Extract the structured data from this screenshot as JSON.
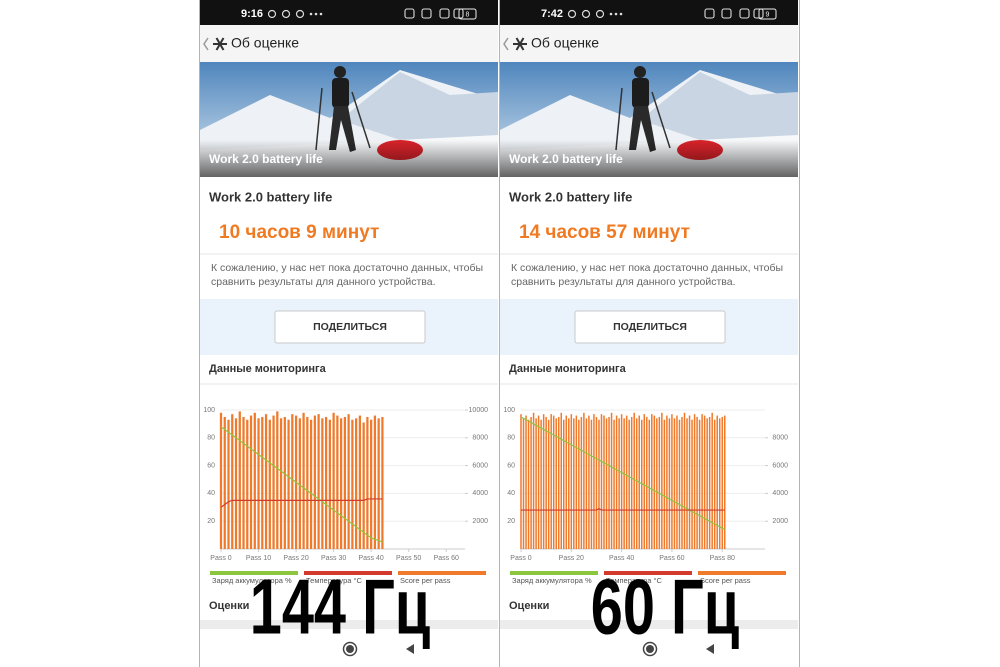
{
  "panels": [
    {
      "time": "9:16",
      "battery": "8",
      "header": "Об оценке",
      "banner_caption": "Work 2.0 battery life",
      "test_name": "Work 2.0 battery life",
      "result": "10 часов 9 минут",
      "note_lines": [
        "К сожалению, у нас нет пока достаточно данных, чтобы",
        "сравнить результаты для данного устройства."
      ],
      "share_button": "ПОДЕЛИТЬСЯ",
      "monitoring_title": "Данные мониторинга",
      "ratings_title": "Оценки",
      "overlay_label": "144 Гц"
    },
    {
      "time": "7:42",
      "battery": "9",
      "header": "Об оценке",
      "banner_caption": "Work 2.0 battery life",
      "test_name": "Work 2.0 battery life",
      "result": "14 часов 57 минут",
      "note_lines": [
        "К сожалению, у нас нет пока достаточно данных, чтобы",
        "сравнить результаты для данного устройства."
      ],
      "share_button": "ПОДЕЛИТЬСЯ",
      "monitoring_title": "Данные мониторинга",
      "ratings_title": "Оценки",
      "overlay_label": "60 Гц"
    }
  ],
  "chart_data": [
    {
      "type": "combo",
      "xlim": [
        0,
        65
      ],
      "ylim": [
        0,
        100
      ],
      "y2lim": [
        0,
        10000
      ],
      "xticks": [
        {
          "value": 0,
          "label": "Pass 0"
        },
        {
          "value": 10,
          "label": "Pass 10"
        },
        {
          "value": 20,
          "label": "Pass 20"
        },
        {
          "value": 30,
          "label": "Pass 30"
        },
        {
          "value": 40,
          "label": "Pass 40"
        },
        {
          "value": 50,
          "label": "Pass 50"
        },
        {
          "value": 60,
          "label": "Pass 60"
        }
      ],
      "yticks": [
        20,
        40,
        60,
        80,
        100
      ],
      "y2ticks": [
        2000,
        4000,
        6000,
        8000,
        10000
      ],
      "grid": true,
      "x": [
        0,
        1,
        2,
        3,
        4,
        5,
        6,
        7,
        8,
        9,
        10,
        11,
        12,
        13,
        14,
        15,
        16,
        17,
        18,
        19,
        20,
        21,
        22,
        23,
        24,
        25,
        26,
        27,
        28,
        29,
        30,
        31,
        32,
        33,
        34,
        35,
        36,
        37,
        38,
        39,
        40,
        41,
        42,
        43
      ],
      "series": [
        {
          "name": "Score per pass",
          "type": "bar",
          "axis": "y2",
          "color": "#ef7a2c",
          "values": [
            9800,
            9500,
            9300,
            9700,
            9400,
            9900,
            9500,
            9300,
            9600,
            9800,
            9400,
            9500,
            9700,
            9300,
            9600,
            9900,
            9400,
            9500,
            9300,
            9700,
            9600,
            9400,
            9800,
            9500,
            9300,
            9600,
            9700,
            9400,
            9500,
            9300,
            9800,
            9600,
            9400,
            9500,
            9700,
            9300,
            9400,
            9600,
            9100,
            9500,
            9300,
            9600,
            9400,
            9500
          ]
        },
        {
          "name": "Заряд аккумулятора %",
          "type": "line",
          "color": "#8cc63f",
          "values": [
            88,
            86,
            84,
            82,
            80,
            78,
            76,
            74,
            72,
            70,
            68,
            66,
            64,
            62,
            60,
            58,
            56,
            54,
            52,
            50,
            48,
            46,
            44,
            42,
            40,
            38,
            36,
            34,
            32,
            30,
            28,
            26,
            24,
            22,
            20,
            18,
            16,
            14,
            12,
            10,
            8,
            7,
            6,
            5
          ]
        },
        {
          "name": "Температура °C",
          "type": "line",
          "color": "#d23a2e",
          "values": [
            30,
            32,
            34,
            35,
            35,
            35,
            35,
            35,
            35,
            35,
            35,
            35,
            35,
            35,
            35,
            35,
            35,
            35,
            35,
            35,
            35,
            35,
            35,
            35,
            35,
            35,
            35,
            35,
            35,
            35,
            35,
            35,
            35,
            35,
            35,
            35,
            35,
            35,
            35,
            36,
            36,
            36,
            36,
            36
          ]
        }
      ]
    },
    {
      "type": "combo",
      "xlim": [
        0,
        97
      ],
      "ylim": [
        0,
        100
      ],
      "y2lim": [
        0,
        10000
      ],
      "xticks": [
        {
          "value": 0,
          "label": "Pass 0"
        },
        {
          "value": 20,
          "label": "Pass 20"
        },
        {
          "value": 40,
          "label": "Pass 40"
        },
        {
          "value": 60,
          "label": "Pass 60"
        },
        {
          "value": 80,
          "label": "Pass 80"
        }
      ],
      "yticks": [
        20,
        40,
        60,
        80,
        100
      ],
      "y2ticks": [
        2000,
        4000,
        6000,
        8000
      ],
      "grid": true,
      "x": [
        0,
        1,
        2,
        3,
        4,
        5,
        6,
        7,
        8,
        9,
        10,
        11,
        12,
        13,
        14,
        15,
        16,
        17,
        18,
        19,
        20,
        21,
        22,
        23,
        24,
        25,
        26,
        27,
        28,
        29,
        30,
        31,
        32,
        33,
        34,
        35,
        36,
        37,
        38,
        39,
        40,
        41,
        42,
        43,
        44,
        45,
        46,
        47,
        48,
        49,
        50,
        51,
        52,
        53,
        54,
        55,
        56,
        57,
        58,
        59,
        60,
        61,
        62,
        63,
        64,
        65,
        66,
        67,
        68,
        69,
        70,
        71,
        72,
        73,
        74,
        75,
        76,
        77,
        78,
        79,
        80,
        81
      ],
      "series": [
        {
          "name": "Score per pass",
          "type": "bar",
          "axis": "y2",
          "color": "#ef7a2c",
          "values": [
            9700,
            9400,
            9600,
            9300,
            9500,
            9800,
            9400,
            9600,
            9300,
            9700,
            9500,
            9300,
            9700,
            9600,
            9400,
            9500,
            9800,
            9300,
            9600,
            9400,
            9700,
            9400,
            9600,
            9300,
            9500,
            9800,
            9400,
            9600,
            9300,
            9700,
            9500,
            9300,
            9700,
            9600,
            9400,
            9500,
            9800,
            9300,
            9600,
            9400,
            9700,
            9400,
            9600,
            9300,
            9500,
            9800,
            9400,
            9600,
            9300,
            9700,
            9500,
            9300,
            9700,
            9600,
            9400,
            9500,
            9800,
            9300,
            9600,
            9400,
            9700,
            9400,
            9600,
            9300,
            9500,
            9800,
            9400,
            9600,
            9300,
            9700,
            9500,
            9300,
            9700,
            9600,
            9400,
            9500,
            9800,
            9300,
            9600,
            9400,
            9500,
            9600
          ]
        },
        {
          "name": "Заряд аккумулятора %",
          "type": "line",
          "color": "#8cc63f",
          "values": [
            95,
            94,
            93,
            92,
            91,
            90,
            89,
            88,
            87,
            86,
            85,
            84,
            83,
            82,
            81,
            80,
            79,
            78,
            77,
            76,
            75,
            74,
            73,
            72,
            71,
            70,
            69,
            68,
            67,
            66,
            65,
            64,
            63,
            62,
            61,
            60,
            59,
            58,
            57,
            56,
            55,
            54,
            53,
            52,
            51,
            50,
            49,
            48,
            47,
            46,
            45,
            44,
            43,
            42,
            41,
            40,
            39,
            38,
            37,
            36,
            35,
            34,
            33,
            32,
            31,
            30,
            29,
            28,
            27,
            26,
            25,
            24,
            23,
            22,
            21,
            20,
            19,
            18,
            17,
            16,
            15,
            14
          ]
        },
        {
          "name": "Температура °C",
          "type": "line",
          "color": "#d23a2e",
          "values": [
            28,
            28,
            28,
            28,
            28,
            28,
            28,
            28,
            28,
            28,
            28,
            28,
            28,
            28,
            28,
            28,
            28,
            28,
            28,
            28,
            28,
            28,
            28,
            28,
            28,
            28,
            28,
            28,
            28,
            28,
            28,
            29,
            28,
            28,
            28,
            28,
            28,
            28,
            28,
            28,
            28,
            28,
            28,
            28,
            28,
            28,
            28,
            28,
            28,
            28,
            28,
            28,
            28,
            28,
            28,
            28,
            28,
            28,
            28,
            28,
            28,
            28,
            28,
            28,
            28,
            28,
            28,
            28,
            28,
            28,
            28,
            28,
            28,
            28,
            28,
            28,
            28,
            28,
            28,
            28,
            28,
            28
          ]
        }
      ]
    }
  ]
}
